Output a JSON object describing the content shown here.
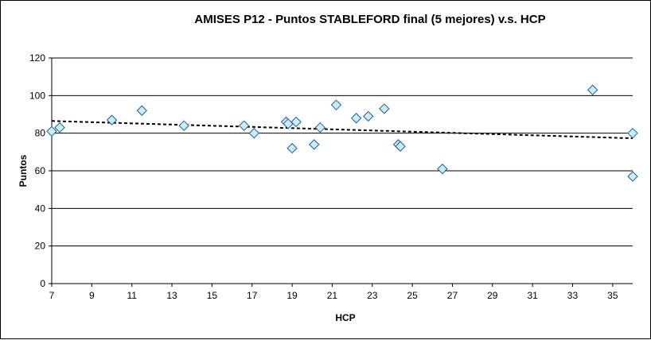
{
  "chart_data": {
    "type": "scatter",
    "title": "AMISES P12 - Puntos STABLEFORD final (5 mejores) v.s. HCP",
    "xlabel": "HCP",
    "ylabel": "Puntos",
    "xlim": [
      7,
      36
    ],
    "ylim": [
      0,
      120
    ],
    "xticks": [
      7,
      9,
      11,
      13,
      15,
      17,
      19,
      21,
      23,
      25,
      27,
      29,
      31,
      33,
      35
    ],
    "yticks": [
      0,
      20,
      40,
      60,
      80,
      100,
      120
    ],
    "grid": "horizontal",
    "legend": "none",
    "colors": {
      "marker_fill": "#CCECFF",
      "marker_stroke": "#1F5F8B",
      "trendline": "#000000",
      "plot_background": "#FFFFFF"
    },
    "points": [
      {
        "x": 7.0,
        "y": 81
      },
      {
        "x": 7.4,
        "y": 83
      },
      {
        "x": 10.0,
        "y": 87
      },
      {
        "x": 11.5,
        "y": 92
      },
      {
        "x": 13.6,
        "y": 84
      },
      {
        "x": 16.6,
        "y": 84
      },
      {
        "x": 17.1,
        "y": 80
      },
      {
        "x": 18.7,
        "y": 86
      },
      {
        "x": 18.8,
        "y": 85
      },
      {
        "x": 19.0,
        "y": 72
      },
      {
        "x": 19.2,
        "y": 86
      },
      {
        "x": 20.1,
        "y": 74
      },
      {
        "x": 20.4,
        "y": 83
      },
      {
        "x": 21.2,
        "y": 95
      },
      {
        "x": 22.2,
        "y": 88
      },
      {
        "x": 22.8,
        "y": 89
      },
      {
        "x": 23.6,
        "y": 93
      },
      {
        "x": 24.3,
        "y": 74
      },
      {
        "x": 24.4,
        "y": 73
      },
      {
        "x": 26.5,
        "y": 61
      },
      {
        "x": 34.0,
        "y": 103
      },
      {
        "x": 36.0,
        "y": 80
      },
      {
        "x": 36.0,
        "y": 57
      }
    ],
    "trendline": {
      "style": "dashed",
      "x": [
        7,
        36
      ],
      "y": [
        86.5,
        77.3
      ]
    }
  }
}
